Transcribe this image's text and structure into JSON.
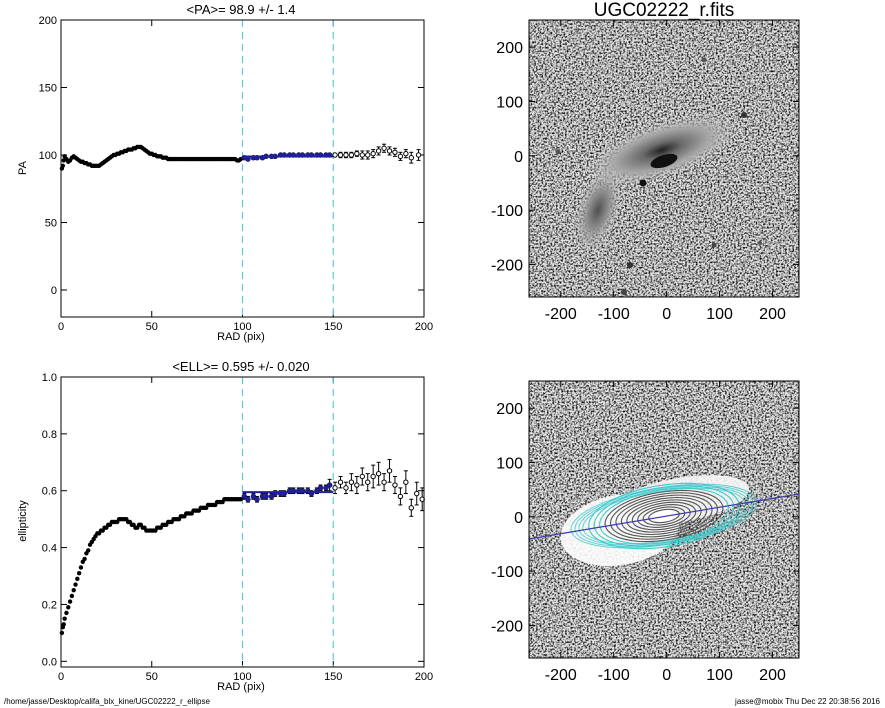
{
  "footer": {
    "path": "/home/jasse/Desktop/califa_blx_kine/UGC02222_r_ellipse",
    "stamp": "jasse@mobix  Thu Dec 22 20:38:56 2016"
  },
  "colors": {
    "fit": "#1f1f9e",
    "window": "#5bc8d8",
    "point": "#000000",
    "contour": "#3fc9cc"
  },
  "chart_data": [
    {
      "type": "scatter",
      "title": "<PA>=  98.9 +/-   1.4",
      "xlabel": "RAD (pix)",
      "ylabel": "PA",
      "xlim": [
        0,
        200
      ],
      "ylim": [
        -20,
        200
      ],
      "xticks": [
        "0",
        "50",
        "100",
        "150",
        "200"
      ],
      "yticks": [
        "0",
        "50",
        "100",
        "150",
        "200"
      ],
      "ytick_values": [
        0,
        50,
        100,
        150,
        200
      ],
      "window": [
        100,
        150
      ],
      "fit": {
        "value": 98.9,
        "range": [
          100,
          150
        ]
      },
      "dense": [
        [
          0.5,
          90
        ],
        [
          1,
          92
        ],
        [
          1.5,
          96
        ],
        [
          2,
          99
        ],
        [
          3,
          97
        ],
        [
          4,
          95
        ],
        [
          5,
          96
        ],
        [
          6,
          98
        ],
        [
          7,
          99
        ],
        [
          8,
          98
        ],
        [
          9,
          97
        ],
        [
          10,
          96
        ],
        [
          11,
          95
        ],
        [
          12,
          95
        ],
        [
          13,
          94
        ],
        [
          14,
          94
        ],
        [
          15,
          93
        ],
        [
          16,
          93
        ],
        [
          17,
          92
        ],
        [
          18,
          92
        ],
        [
          19,
          92
        ],
        [
          20,
          92
        ],
        [
          21,
          92
        ],
        [
          22,
          93
        ],
        [
          23,
          94
        ],
        [
          24,
          95
        ],
        [
          25,
          96
        ],
        [
          26,
          97
        ],
        [
          27,
          98
        ],
        [
          28,
          99
        ],
        [
          29,
          100
        ],
        [
          30,
          100
        ],
        [
          31,
          101
        ],
        [
          32,
          101
        ],
        [
          33,
          102
        ],
        [
          34,
          102
        ],
        [
          35,
          103
        ],
        [
          36,
          103
        ],
        [
          37,
          104
        ],
        [
          38,
          104
        ],
        [
          39,
          104
        ],
        [
          40,
          105
        ],
        [
          41,
          105
        ],
        [
          42,
          106
        ],
        [
          43,
          106
        ],
        [
          44,
          106
        ],
        [
          45,
          105
        ],
        [
          46,
          104
        ],
        [
          47,
          103
        ],
        [
          48,
          102
        ],
        [
          49,
          101
        ],
        [
          50,
          101
        ],
        [
          51,
          100
        ],
        [
          52,
          100
        ],
        [
          53,
          99
        ],
        [
          54,
          99
        ],
        [
          55,
          99
        ],
        [
          56,
          98
        ],
        [
          57,
          98
        ],
        [
          58,
          98
        ],
        [
          59,
          97
        ],
        [
          60,
          97
        ],
        [
          61,
          97
        ],
        [
          62,
          97
        ],
        [
          63,
          97
        ],
        [
          64,
          97
        ],
        [
          65,
          97
        ],
        [
          66,
          97
        ],
        [
          67,
          97
        ],
        [
          68,
          97
        ],
        [
          69,
          97
        ],
        [
          70,
          97
        ],
        [
          71,
          97
        ],
        [
          72,
          97
        ],
        [
          73,
          97
        ],
        [
          74,
          97
        ],
        [
          75,
          97
        ],
        [
          76,
          97
        ],
        [
          77,
          97
        ],
        [
          78,
          97
        ],
        [
          79,
          97
        ],
        [
          80,
          97
        ],
        [
          81,
          97
        ],
        [
          82,
          97
        ],
        [
          83,
          97
        ],
        [
          84,
          97
        ],
        [
          85,
          97
        ],
        [
          86,
          97
        ],
        [
          87,
          97
        ],
        [
          88,
          97
        ],
        [
          89,
          97
        ],
        [
          90,
          97
        ],
        [
          91,
          97
        ],
        [
          92,
          97
        ],
        [
          93,
          97
        ],
        [
          94,
          97
        ],
        [
          95,
          97
        ],
        [
          96,
          97
        ],
        [
          97,
          96
        ],
        [
          98,
          96
        ],
        [
          99,
          97
        ]
      ],
      "points": [
        [
          101,
          98,
          1
        ],
        [
          103,
          97,
          1
        ],
        [
          106,
          98,
          1
        ],
        [
          108,
          98,
          1
        ],
        [
          111,
          98,
          1
        ],
        [
          113,
          99,
          1
        ],
        [
          116,
          99,
          1
        ],
        [
          118,
          99,
          1
        ],
        [
          121,
          100,
          1
        ],
        [
          123,
          100,
          1
        ],
        [
          126,
          100,
          1
        ],
        [
          128,
          100,
          1
        ],
        [
          131,
          100,
          1
        ],
        [
          133,
          100,
          1
        ],
        [
          136,
          100,
          1
        ],
        [
          138,
          100,
          1
        ],
        [
          141,
          100,
          1
        ],
        [
          143,
          100,
          1
        ],
        [
          146,
          100,
          1
        ],
        [
          148,
          100,
          1
        ],
        [
          151,
          100,
          1
        ],
        [
          154,
          100,
          2
        ],
        [
          157,
          100,
          2
        ],
        [
          160,
          100,
          2
        ],
        [
          163,
          101,
          2
        ],
        [
          166,
          100,
          3
        ],
        [
          169,
          100,
          3
        ],
        [
          172,
          101,
          3
        ],
        [
          175,
          103,
          3
        ],
        [
          178,
          105,
          3
        ],
        [
          181,
          103,
          3
        ],
        [
          184,
          102,
          3
        ],
        [
          187,
          99,
          3
        ],
        [
          190,
          101,
          3
        ],
        [
          193,
          98,
          4
        ],
        [
          197,
          100,
          4
        ]
      ]
    },
    {
      "type": "scatter",
      "title": "<ELL>= 0.595 +/-  0.020",
      "xlabel": "RAD (pix)",
      "ylabel": "ellipticity",
      "xlim": [
        0,
        200
      ],
      "ylim": [
        -0.02,
        1.0
      ],
      "xticks": [
        "0",
        "50",
        "100",
        "150",
        "200"
      ],
      "yticks": [
        "0.0",
        "0.2",
        "0.4",
        "0.6",
        "0.8",
        "1.0"
      ],
      "ytick_values": [
        0,
        0.2,
        0.4,
        0.6,
        0.8,
        1.0
      ],
      "window": [
        100,
        150
      ],
      "fit": {
        "value": 0.595,
        "range": [
          100,
          150
        ]
      },
      "dense": [
        [
          0.5,
          0.1
        ],
        [
          1,
          0.12
        ],
        [
          1.5,
          0.13
        ],
        [
          2,
          0.15
        ],
        [
          3,
          0.17
        ],
        [
          4,
          0.19
        ],
        [
          5,
          0.21
        ],
        [
          6,
          0.23
        ],
        [
          7,
          0.25
        ],
        [
          8,
          0.27
        ],
        [
          9,
          0.29
        ],
        [
          10,
          0.31
        ],
        [
          11,
          0.33
        ],
        [
          12,
          0.35
        ],
        [
          13,
          0.36
        ],
        [
          14,
          0.38
        ],
        [
          15,
          0.39
        ],
        [
          16,
          0.41
        ],
        [
          17,
          0.42
        ],
        [
          18,
          0.43
        ],
        [
          19,
          0.44
        ],
        [
          20,
          0.45
        ],
        [
          21,
          0.45
        ],
        [
          22,
          0.46
        ],
        [
          23,
          0.46
        ],
        [
          24,
          0.47
        ],
        [
          25,
          0.47
        ],
        [
          26,
          0.48
        ],
        [
          27,
          0.48
        ],
        [
          28,
          0.49
        ],
        [
          29,
          0.49
        ],
        [
          30,
          0.49
        ],
        [
          31,
          0.49
        ],
        [
          32,
          0.5
        ],
        [
          33,
          0.5
        ],
        [
          34,
          0.5
        ],
        [
          35,
          0.5
        ],
        [
          36,
          0.5
        ],
        [
          37,
          0.49
        ],
        [
          38,
          0.49
        ],
        [
          39,
          0.48
        ],
        [
          40,
          0.48
        ],
        [
          41,
          0.47
        ],
        [
          42,
          0.47
        ],
        [
          43,
          0.48
        ],
        [
          44,
          0.48
        ],
        [
          45,
          0.47
        ],
        [
          46,
          0.47
        ],
        [
          47,
          0.46
        ],
        [
          48,
          0.46
        ],
        [
          49,
          0.46
        ],
        [
          50,
          0.46
        ],
        [
          51,
          0.46
        ],
        [
          52,
          0.46
        ],
        [
          53,
          0.47
        ],
        [
          54,
          0.47
        ],
        [
          55,
          0.47
        ],
        [
          56,
          0.48
        ],
        [
          57,
          0.48
        ],
        [
          58,
          0.48
        ],
        [
          59,
          0.49
        ],
        [
          60,
          0.49
        ],
        [
          61,
          0.49
        ],
        [
          62,
          0.5
        ],
        [
          63,
          0.5
        ],
        [
          64,
          0.5
        ],
        [
          65,
          0.5
        ],
        [
          66,
          0.51
        ],
        [
          67,
          0.51
        ],
        [
          68,
          0.51
        ],
        [
          69,
          0.52
        ],
        [
          70,
          0.52
        ],
        [
          71,
          0.52
        ],
        [
          72,
          0.52
        ],
        [
          73,
          0.53
        ],
        [
          74,
          0.53
        ],
        [
          75,
          0.53
        ],
        [
          76,
          0.53
        ],
        [
          77,
          0.54
        ],
        [
          78,
          0.54
        ],
        [
          79,
          0.54
        ],
        [
          80,
          0.54
        ],
        [
          81,
          0.55
        ],
        [
          82,
          0.55
        ],
        [
          83,
          0.55
        ],
        [
          84,
          0.55
        ],
        [
          85,
          0.55
        ],
        [
          86,
          0.56
        ],
        [
          87,
          0.56
        ],
        [
          88,
          0.56
        ],
        [
          89,
          0.56
        ],
        [
          90,
          0.57
        ],
        [
          91,
          0.57
        ],
        [
          92,
          0.57
        ],
        [
          93,
          0.57
        ],
        [
          94,
          0.57
        ],
        [
          95,
          0.57
        ],
        [
          96,
          0.57
        ],
        [
          97,
          0.57
        ],
        [
          98,
          0.57
        ],
        [
          99,
          0.57
        ]
      ],
      "points": [
        [
          101,
          0.58,
          0.01
        ],
        [
          103,
          0.57,
          0.01
        ],
        [
          106,
          0.58,
          0.01
        ],
        [
          108,
          0.57,
          0.01
        ],
        [
          111,
          0.58,
          0.01
        ],
        [
          113,
          0.58,
          0.01
        ],
        [
          116,
          0.58,
          0.01
        ],
        [
          118,
          0.59,
          0.01
        ],
        [
          121,
          0.59,
          0.01
        ],
        [
          123,
          0.59,
          0.01
        ],
        [
          126,
          0.6,
          0.01
        ],
        [
          128,
          0.6,
          0.01
        ],
        [
          131,
          0.6,
          0.01
        ],
        [
          133,
          0.6,
          0.01
        ],
        [
          136,
          0.6,
          0.01
        ],
        [
          138,
          0.59,
          0.01
        ],
        [
          141,
          0.6,
          0.01
        ],
        [
          143,
          0.61,
          0.01
        ],
        [
          146,
          0.61,
          0.01
        ],
        [
          148,
          0.62,
          0.02
        ],
        [
          151,
          0.61,
          0.02
        ],
        [
          154,
          0.63,
          0.02
        ],
        [
          157,
          0.61,
          0.02
        ],
        [
          160,
          0.63,
          0.03
        ],
        [
          163,
          0.62,
          0.03
        ],
        [
          166,
          0.65,
          0.03
        ],
        [
          169,
          0.63,
          0.03
        ],
        [
          172,
          0.65,
          0.04
        ],
        [
          175,
          0.66,
          0.04
        ],
        [
          178,
          0.63,
          0.03
        ],
        [
          181,
          0.67,
          0.04
        ],
        [
          184,
          0.62,
          0.03
        ],
        [
          187,
          0.58,
          0.03
        ],
        [
          190,
          0.63,
          0.04
        ],
        [
          193,
          0.54,
          0.03
        ],
        [
          196,
          0.59,
          0.04
        ],
        [
          199,
          0.57,
          0.04
        ]
      ]
    },
    {
      "type": "image",
      "title": "UGC02222_r.fits",
      "xlim": [
        -260,
        250
      ],
      "ylim": [
        -260,
        250
      ],
      "xticks": [
        "-200",
        "-100",
        "0",
        "100",
        "200"
      ],
      "yticks": [
        "-200",
        "-100",
        "0",
        "100",
        "200"
      ],
      "tick_values": [
        -200,
        -100,
        0,
        100,
        200
      ]
    },
    {
      "type": "image",
      "title": "",
      "xlim": [
        -260,
        250
      ],
      "ylim": [
        -260,
        250
      ],
      "xticks": [
        "-200",
        "-100",
        "0",
        "100",
        "200"
      ],
      "yticks": [
        "-200",
        "-100",
        "0",
        "100",
        "200"
      ],
      "tick_values": [
        -200,
        -100,
        0,
        100,
        200
      ],
      "major_axis_pa": 98.9,
      "ellipticity": 0.595
    }
  ]
}
